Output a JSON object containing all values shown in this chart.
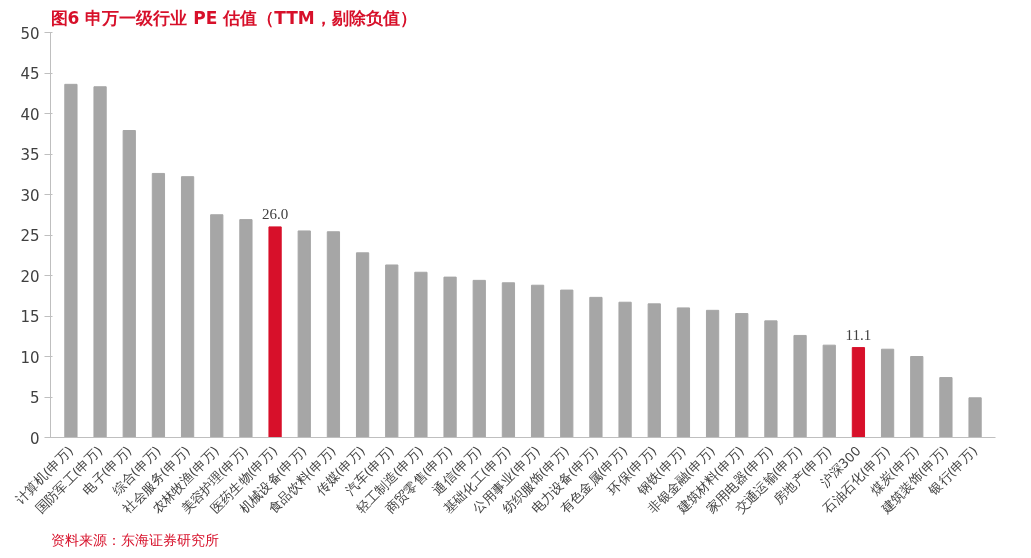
{
  "chart_data": {
    "type": "bar",
    "title": "图6  申万一级行业 PE 估值（TTM，剔除负值）",
    "categories": [
      "计算机(申万)",
      "国防军工(申万)",
      "电子(申万)",
      "综合(申万)",
      "社会服务(申万)",
      "农林牧渔(申万)",
      "美容护理(申万)",
      "医药生物(申万)",
      "机械设备(申万)",
      "食品饮料(申万)",
      "传媒(申万)",
      "汽车(申万)",
      "轻工制造(申万)",
      "商贸零售(申万)",
      "通信(申万)",
      "基础化工(申万)",
      "公用事业(申万)",
      "纺织服饰(申万)",
      "电力设备(申万)",
      "有色金属(申万)",
      "环保(申万)",
      "钢铁(申万)",
      "非银金融(申万)",
      "建筑材料(申万)",
      "家用电器(申万)",
      "交通运输(申万)",
      "房地产(申万)",
      "沪深300",
      "石油石化(申万)",
      "煤炭(申万)",
      "建筑装饰(申万)",
      "银行(申万)"
    ],
    "values": [
      43.6,
      43.3,
      37.9,
      32.6,
      32.2,
      27.5,
      26.9,
      26.0,
      25.5,
      25.4,
      22.8,
      21.3,
      20.4,
      19.8,
      19.4,
      19.1,
      18.8,
      18.2,
      17.3,
      16.7,
      16.5,
      16.0,
      15.7,
      15.3,
      14.4,
      12.6,
      11.4,
      11.1,
      10.9,
      10.0,
      7.4,
      4.9
    ],
    "colors": [
      "#a6a6a6",
      "#a6a6a6",
      "#a6a6a6",
      "#a6a6a6",
      "#a6a6a6",
      "#a6a6a6",
      "#a6a6a6",
      "#d7102a",
      "#a6a6a6",
      "#a6a6a6",
      "#a6a6a6",
      "#a6a6a6",
      "#a6a6a6",
      "#a6a6a6",
      "#a6a6a6",
      "#a6a6a6",
      "#a6a6a6",
      "#a6a6a6",
      "#a6a6a6",
      "#a6a6a6",
      "#a6a6a6",
      "#a6a6a6",
      "#a6a6a6",
      "#a6a6a6",
      "#a6a6a6",
      "#a6a6a6",
      "#a6a6a6",
      "#d7102a",
      "#a6a6a6",
      "#a6a6a6",
      "#a6a6a6",
      "#a6a6a6"
    ],
    "value_labels": [
      null,
      null,
      null,
      null,
      null,
      null,
      null,
      "26.0",
      null,
      null,
      null,
      null,
      null,
      null,
      null,
      null,
      null,
      null,
      null,
      null,
      null,
      null,
      null,
      null,
      null,
      null,
      null,
      "11.1",
      null,
      null,
      null,
      null
    ],
    "ylim": [
      0,
      50
    ],
    "yticks": [
      0,
      5,
      10,
      15,
      20,
      25,
      30,
      35,
      40,
      45,
      50
    ],
    "grid": false,
    "annotations": [
      "资料来源：东海证券研究所"
    ]
  }
}
